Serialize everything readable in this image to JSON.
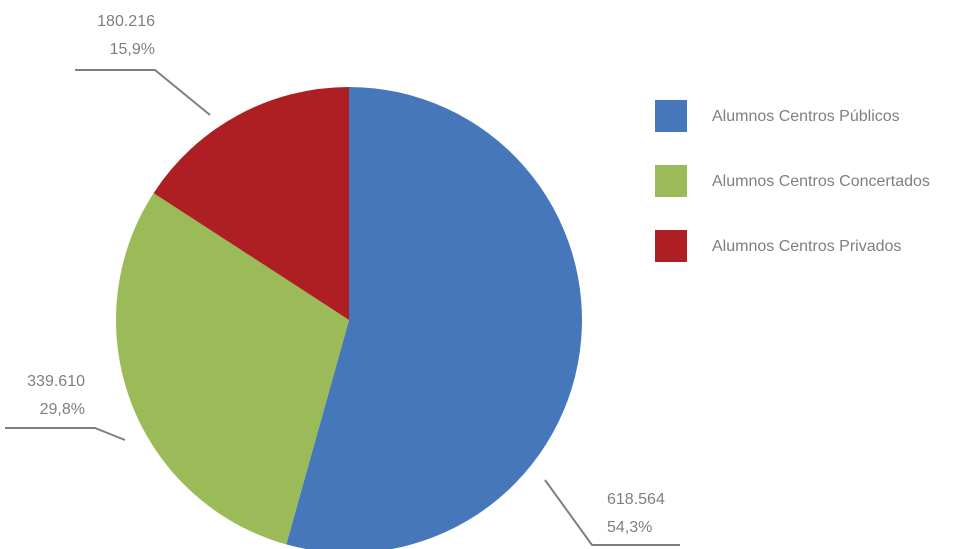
{
  "chart_data": {
    "type": "pie",
    "categories": [
      "Alumnos Centros Públicos",
      "Alumnos Centros Concertados",
      "Alumnos Centros Privados"
    ],
    "values": [
      618564,
      339610,
      180216
    ],
    "value_labels": [
      "618.564",
      "339.610",
      "180.216"
    ],
    "percentages": [
      54.3,
      29.8,
      15.9
    ],
    "percentage_labels": [
      "54,3%",
      "29,8%",
      "15,9%"
    ],
    "colors": [
      "#4677bb",
      "#9bbb59",
      "#ae1f24"
    ],
    "legend": "right"
  }
}
